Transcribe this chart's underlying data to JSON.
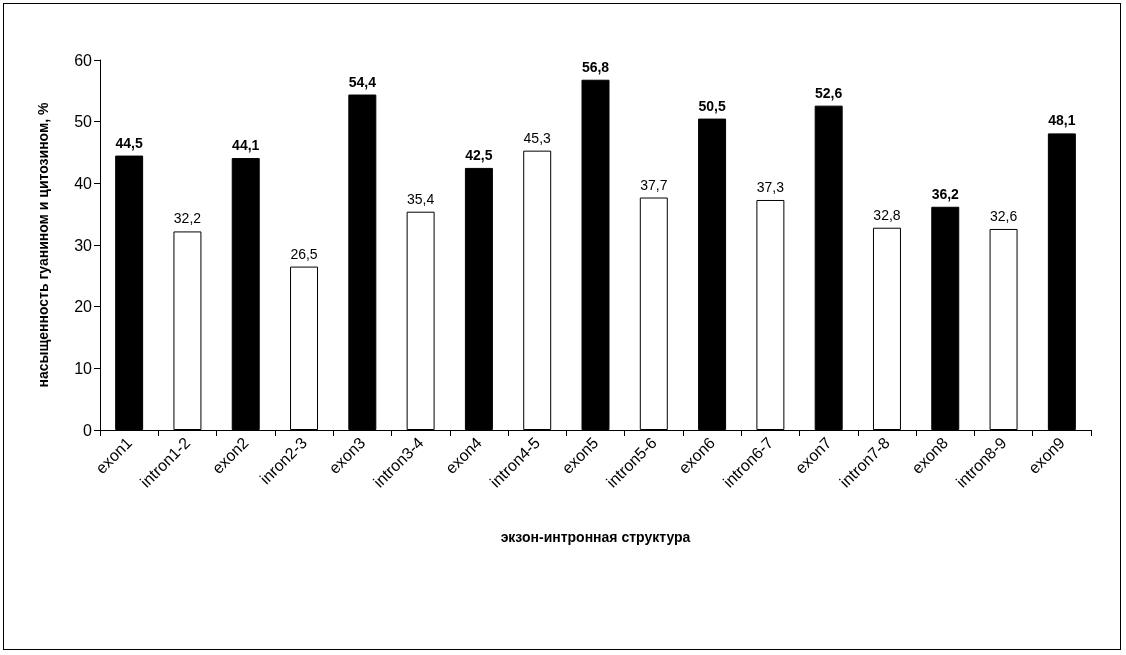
{
  "chart_data": {
    "type": "bar",
    "xlabel": "экзон-интронная структура",
    "ylabel": "насыщенность гуанином и цитозином, %",
    "categories": [
      "exon1",
      "intron1-2",
      "exon2",
      "inron2-3",
      "exon3",
      "intron3-4",
      "exon4",
      "intron4-5",
      "exon5",
      "intron5-6",
      "exon6",
      "intron6-7",
      "exon7",
      "intron7-8",
      "exon8",
      "intron8-9",
      "exon9"
    ],
    "values": [
      44.5,
      32.2,
      44.1,
      26.5,
      54.4,
      35.4,
      42.5,
      45.3,
      56.8,
      37.7,
      50.5,
      37.3,
      52.6,
      32.8,
      36.2,
      32.6,
      48.1
    ],
    "colors": [
      "#000000",
      "#ffffff",
      "#000000",
      "#ffffff",
      "#000000",
      "#ffffff",
      "#000000",
      "#ffffff",
      "#000000",
      "#ffffff",
      "#000000",
      "#ffffff",
      "#000000",
      "#ffffff",
      "#000000",
      "#ffffff",
      "#000000"
    ],
    "ylim": [
      0,
      60
    ],
    "yticks": [
      0,
      10,
      20,
      30,
      40,
      50,
      60
    ],
    "value_labels": [
      "44,5",
      "32,2",
      "44,1",
      "26,5",
      "54,4",
      "35,4",
      "42,5",
      "45,3",
      "56,8",
      "37,7",
      "50,5",
      "37,3",
      "52,6",
      "32,8",
      "36,2",
      "32,6",
      "48,1"
    ],
    "grid": false
  }
}
